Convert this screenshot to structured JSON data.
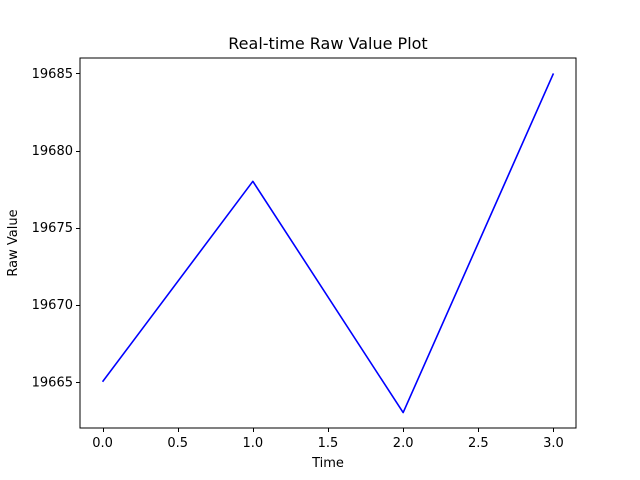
{
  "chart_data": {
    "type": "line",
    "title": "Real-time Raw Value Plot",
    "xlabel": "Time",
    "ylabel": "Raw Value",
    "x_ticks": [
      0.0,
      0.5,
      1.0,
      1.5,
      2.0,
      2.5,
      3.0
    ],
    "x_tick_labels": [
      "0.0",
      "0.5",
      "1.0",
      "1.5",
      "2.0",
      "2.5",
      "3.0"
    ],
    "y_ticks": [
      19665,
      19670,
      19675,
      19680,
      19685
    ],
    "y_tick_labels": [
      "19665",
      "19670",
      "19675",
      "19680",
      "19685"
    ],
    "xlim": [
      -0.15,
      3.15
    ],
    "ylim": [
      19662,
      19686
    ],
    "grid": false,
    "series": [
      {
        "color": "#0000ff",
        "x": [
          0,
          1,
          2,
          3
        ],
        "y": [
          19665,
          19678,
          19663,
          19685
        ]
      }
    ]
  }
}
